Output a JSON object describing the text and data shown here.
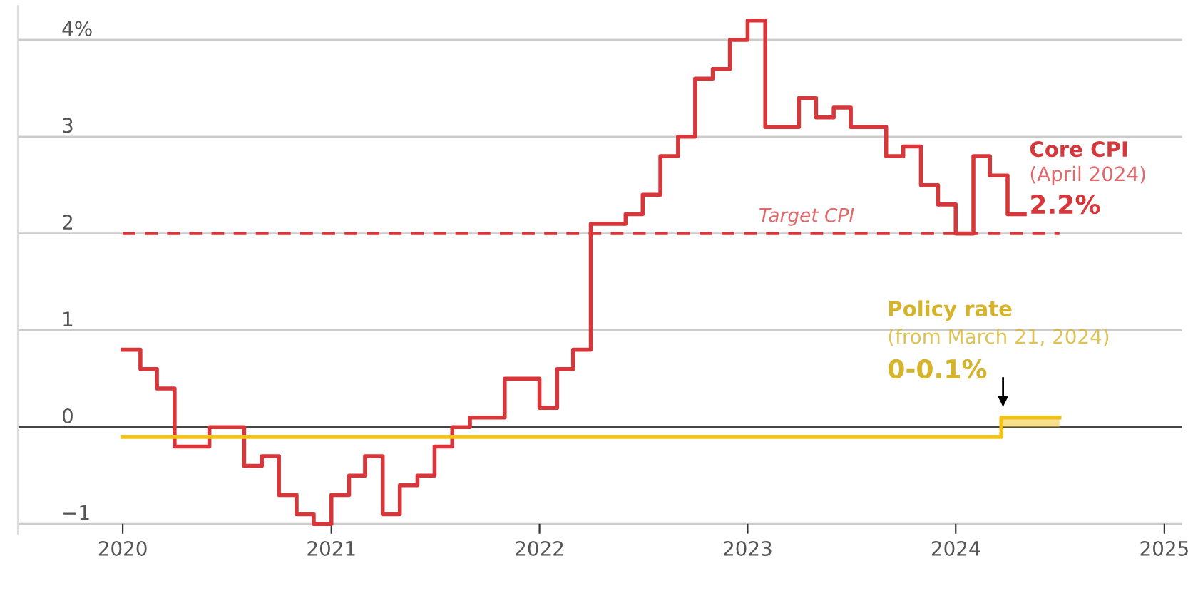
{
  "chart_data": {
    "type": "step",
    "series": [
      {
        "name": "Core CPI",
        "color": "#d7373a",
        "x": [
          "2020-01",
          "2020-02",
          "2020-03",
          "2020-04",
          "2020-05",
          "2020-06",
          "2020-07",
          "2020-08",
          "2020-09",
          "2020-10",
          "2020-11",
          "2020-12",
          "2021-01",
          "2021-02",
          "2021-03",
          "2021-04",
          "2021-05",
          "2021-06",
          "2021-07",
          "2021-08",
          "2021-09",
          "2021-10",
          "2021-11",
          "2021-12",
          "2022-01",
          "2022-02",
          "2022-03",
          "2022-04",
          "2022-05",
          "2022-06",
          "2022-07",
          "2022-08",
          "2022-09",
          "2022-10",
          "2022-11",
          "2022-12",
          "2023-01",
          "2023-02",
          "2023-03",
          "2023-04",
          "2023-05",
          "2023-06",
          "2023-07",
          "2023-08",
          "2023-09",
          "2023-10",
          "2023-11",
          "2023-12",
          "2024-01",
          "2024-02",
          "2024-03",
          "2024-04",
          "2024-05"
        ],
        "values": [
          0.8,
          0.6,
          0.4,
          -0.2,
          -0.2,
          0.0,
          0.0,
          -0.4,
          -0.3,
          -0.7,
          -0.9,
          -1.0,
          -0.7,
          -0.5,
          -0.3,
          -0.9,
          -0.6,
          -0.5,
          -0.2,
          0.0,
          0.1,
          0.1,
          0.5,
          0.5,
          0.2,
          0.6,
          0.8,
          2.1,
          2.1,
          2.2,
          2.4,
          2.8,
          3.0,
          3.6,
          3.7,
          4.0,
          4.2,
          3.1,
          3.1,
          3.4,
          3.2,
          3.3,
          3.1,
          3.1,
          2.8,
          2.9,
          2.5,
          2.3,
          2.0,
          2.8,
          2.6,
          2.2,
          2.2
        ]
      },
      {
        "color": "#f0c21b",
        "x": [
          "2020-01-01",
          "2024-03-21",
          "2024-07-01"
        ],
        "values": [
          -0.1,
          0.1,
          0.1
        ],
        "lower": [
          -0.1,
          0.0,
          0.0
        ],
        "upper": [
          -0.1,
          0.1,
          0.1
        ]
      }
    ],
    "ref_lines": [
      {
        "axis": "y",
        "value": 2,
        "label": "Target CPI",
        "color": "#d7373a",
        "line_style": "dashed"
      }
    ],
    "annotations": [
      {
        "text": "(April 2024)",
        "x": "2024-05",
        "y": 2.2
      },
      {
        "text": "2.2%",
        "x": "2024-05",
        "y": 2.2
      },
      "Policy rate",
      "(from March 21, 2024)",
      "0-0.1%"
    ],
    "xlim": [
      "2019-07-01",
      "2025-02-01"
    ],
    "xticks": [
      {
        "value": "2020-01-01",
        "label": "2020"
      },
      {
        "value": "2021-01-01",
        "label": "2021"
      },
      {
        "value": "2022-01-01",
        "label": "2022"
      },
      {
        "value": "2023-01-01",
        "label": "2023"
      },
      {
        "value": "2024-01-01",
        "label": "2024"
      },
      {
        "value": "2025-01-01",
        "label": "2025"
      }
    ],
    "ylim": [
      -1.1,
      4.35
    ],
    "yticks": [
      {
        "value": -1,
        "label": "−1"
      },
      0,
      1,
      2,
      3,
      {
        "value": 4,
        "label": "4%"
      }
    ],
    "grid": "y",
    "legend": false,
    "line_style": "solid",
    "marker": "none"
  }
}
